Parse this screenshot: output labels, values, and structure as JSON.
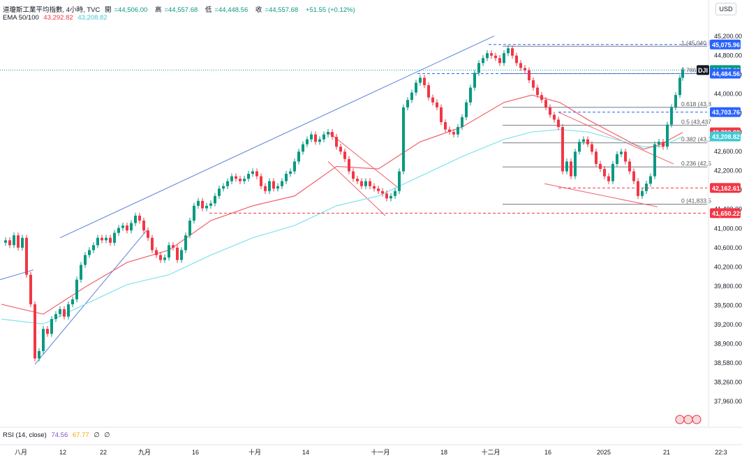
{
  "header": {
    "title": "道瓊斯工業平均指數, 4小時, TVC",
    "open_label": "開",
    "open": "=44,506.00",
    "high_label": "高",
    "high": "=44,557.68",
    "low_label": "低",
    "low": "=44,448.56",
    "close_label": "收",
    "close": "=44,557.68",
    "change": "+51.55 (+0.12%)",
    "ema_label": "EMA 50/100",
    "ema50": "43,292.82",
    "ema100": "43,208.82",
    "currency": "USD"
  },
  "rsi": {
    "label": "RSI (14, close)",
    "v1": "74.56",
    "v2": "67.77",
    "v3": "∅",
    "v4": "∅"
  },
  "colors": {
    "up": "#089981",
    "down": "#f23645",
    "ema50": "#f0606a",
    "ema100": "#7fe3ec",
    "trend": "#5b7fdc",
    "fib": "#787b86",
    "accent": "#2962ff"
  },
  "chart_data": {
    "type": "candlestick",
    "title": "",
    "ylim": [
      37800,
      45300
    ],
    "y_ticks": [
      "45,200.00",
      "44,800.00",
      "44,400.00",
      "44,000.00",
      "43,500.00",
      "43,000.00",
      "42,600.00",
      "42,200.00",
      "41,800.00",
      "41,400.00",
      "41,000.00",
      "40,600.00",
      "40,200.00",
      "39,800.00",
      "39,500.00",
      "39,200.00",
      "38,900.00",
      "38,580.00",
      "38,260.00",
      "37,960.00"
    ],
    "x_ticks": [
      "八月",
      "12",
      "22",
      "九月",
      "16",
      "十月",
      "14",
      "十一月",
      "18",
      "十二月",
      "16",
      "2025",
      "21",
      "22:3"
    ],
    "price_tags": [
      {
        "label": "45,075.96",
        "value": 45075.96,
        "kind": "level"
      },
      {
        "label": "44,557.68",
        "value": 44557.68,
        "kind": "last",
        "symbol": "DJI"
      },
      {
        "label": "44,484.56",
        "value": 44484.56,
        "kind": "level"
      },
      {
        "label": "43,703.76",
        "value": 43703.76,
        "kind": "level"
      },
      {
        "label": "43,292.82",
        "value": 43292.82,
        "kind": "ema50"
      },
      {
        "label": "43,208.82",
        "value": 43208.82,
        "kind": "ema100"
      },
      {
        "label": "42,162.61",
        "value": 42162.61,
        "kind": "alert"
      },
      {
        "label": "41,650.22",
        "value": 41650.22,
        "kind": "alert"
      }
    ],
    "fib_levels": [
      {
        "label": "1 (45,040.8",
        "value": 45040.8
      },
      {
        "label": "0.786",
        "value": 44484.56
      },
      {
        "label": "0.618 (43,8",
        "value": 43800
      },
      {
        "label": "0.5 (43,437",
        "value": 43437
      },
      {
        "label": "0.382 (43,0",
        "value": 43080
      },
      {
        "label": "0.236 (42,5",
        "value": 42590
      },
      {
        "label": "0 (41,833.5",
        "value": 41833.5
      }
    ],
    "candle_close_path": [
      [
        0,
        41050
      ],
      [
        6,
        41100
      ],
      [
        12,
        41000
      ],
      [
        18,
        41200
      ],
      [
        24,
        40950
      ],
      [
        30,
        41150
      ],
      [
        36,
        40400
      ],
      [
        42,
        39800
      ],
      [
        48,
        38700
      ],
      [
        54,
        38850
      ],
      [
        60,
        39300
      ],
      [
        66,
        39200
      ],
      [
        72,
        39500
      ],
      [
        78,
        39600
      ],
      [
        84,
        39700
      ],
      [
        90,
        39550
      ],
      [
        96,
        39800
      ],
      [
        102,
        39900
      ],
      [
        108,
        40300
      ],
      [
        114,
        40600
      ],
      [
        120,
        40800
      ],
      [
        126,
        40900
      ],
      [
        132,
        41000
      ],
      [
        138,
        41150
      ],
      [
        144,
        41100
      ],
      [
        150,
        41150
      ],
      [
        156,
        41050
      ],
      [
        162,
        41250
      ],
      [
        168,
        41350
      ],
      [
        174,
        41400
      ],
      [
        180,
        41300
      ],
      [
        186,
        41450
      ],
      [
        192,
        41600
      ],
      [
        198,
        41500
      ],
      [
        204,
        41300
      ],
      [
        210,
        41150
      ],
      [
        216,
        40900
      ],
      [
        222,
        40800
      ],
      [
        228,
        40700
      ],
      [
        234,
        40750
      ],
      [
        240,
        41000
      ],
      [
        246,
        40950
      ],
      [
        252,
        40700
      ],
      [
        258,
        40900
      ],
      [
        264,
        41200
      ],
      [
        270,
        41500
      ],
      [
        276,
        41800
      ],
      [
        282,
        41900
      ],
      [
        288,
        41750
      ],
      [
        294,
        41800
      ],
      [
        300,
        41850
      ],
      [
        306,
        42000
      ],
      [
        312,
        42150
      ],
      [
        318,
        42200
      ],
      [
        324,
        42300
      ],
      [
        330,
        42400
      ],
      [
        336,
        42350
      ],
      [
        342,
        42300
      ],
      [
        348,
        42350
      ],
      [
        354,
        42450
      ],
      [
        360,
        42500
      ],
      [
        366,
        42400
      ],
      [
        372,
        42200
      ],
      [
        378,
        42100
      ],
      [
        384,
        42300
      ],
      [
        390,
        42150
      ],
      [
        396,
        42200
      ],
      [
        402,
        42300
      ],
      [
        408,
        42450
      ],
      [
        414,
        42500
      ],
      [
        420,
        42700
      ],
      [
        426,
        42900
      ],
      [
        432,
        43050
      ],
      [
        438,
        43150
      ],
      [
        444,
        43250
      ],
      [
        450,
        43100
      ],
      [
        456,
        43150
      ],
      [
        462,
        43250
      ],
      [
        468,
        43300
      ],
      [
        474,
        43200
      ],
      [
        480,
        43000
      ],
      [
        486,
        42900
      ],
      [
        492,
        42750
      ],
      [
        498,
        42500
      ],
      [
        504,
        42350
      ],
      [
        510,
        42300
      ],
      [
        516,
        42200
      ],
      [
        522,
        42300
      ],
      [
        528,
        42200
      ],
      [
        534,
        42150
      ],
      [
        540,
        42100
      ],
      [
        546,
        42050
      ],
      [
        552,
        41950
      ],
      [
        558,
        42000
      ],
      [
        564,
        42100
      ],
      [
        570,
        42500
      ],
      [
        576,
        43800
      ],
      [
        582,
        43950
      ],
      [
        588,
        44100
      ],
      [
        594,
        44300
      ],
      [
        600,
        44400
      ],
      [
        606,
        44250
      ],
      [
        612,
        44000
      ],
      [
        618,
        43900
      ],
      [
        624,
        43800
      ],
      [
        630,
        43500
      ],
      [
        636,
        43350
      ],
      [
        642,
        43300
      ],
      [
        648,
        43250
      ],
      [
        654,
        43400
      ],
      [
        660,
        43600
      ],
      [
        666,
        43900
      ],
      [
        672,
        44200
      ],
      [
        678,
        44500
      ],
      [
        684,
        44700
      ],
      [
        690,
        44800
      ],
      [
        696,
        44900
      ],
      [
        702,
        44850
      ],
      [
        708,
        44800
      ],
      [
        714,
        44700
      ],
      [
        720,
        44900
      ],
      [
        726,
        45000
      ],
      [
        732,
        44850
      ],
      [
        738,
        44700
      ],
      [
        744,
        44600
      ],
      [
        750,
        44550
      ],
      [
        756,
        44350
      ],
      [
        762,
        44200
      ],
      [
        768,
        44050
      ],
      [
        774,
        43950
      ],
      [
        780,
        43800
      ],
      [
        786,
        43650
      ],
      [
        792,
        43550
      ],
      [
        798,
        43400
      ],
      [
        804,
        42500
      ],
      [
        810,
        42700
      ],
      [
        816,
        42400
      ],
      [
        822,
        42900
      ],
      [
        828,
        43100
      ],
      [
        834,
        43150
      ],
      [
        840,
        43050
      ],
      [
        846,
        42900
      ],
      [
        852,
        42650
      ],
      [
        858,
        42550
      ],
      [
        864,
        42400
      ],
      [
        870,
        42300
      ],
      [
        876,
        42650
      ],
      [
        882,
        42850
      ],
      [
        888,
        42900
      ],
      [
        894,
        42700
      ],
      [
        900,
        42500
      ],
      [
        906,
        42300
      ],
      [
        912,
        42000
      ],
      [
        918,
        42100
      ],
      [
        924,
        42250
      ],
      [
        930,
        42400
      ],
      [
        936,
        43050
      ],
      [
        942,
        43100
      ],
      [
        948,
        43000
      ],
      [
        954,
        43450
      ],
      [
        960,
        43800
      ],
      [
        966,
        44050
      ],
      [
        972,
        44400
      ],
      [
        976,
        44557
      ]
    ],
    "ema50_path": [
      [
        0,
        39800
      ],
      [
        60,
        39600
      ],
      [
        120,
        40150
      ],
      [
        180,
        40650
      ],
      [
        240,
        40900
      ],
      [
        300,
        41500
      ],
      [
        360,
        41800
      ],
      [
        420,
        42000
      ],
      [
        480,
        42600
      ],
      [
        540,
        42550
      ],
      [
        600,
        43100
      ],
      [
        660,
        43400
      ],
      [
        720,
        43900
      ],
      [
        760,
        44050
      ],
      [
        800,
        43900
      ],
      [
        840,
        43550
      ],
      [
        880,
        43250
      ],
      [
        920,
        42950
      ],
      [
        945,
        43050
      ],
      [
        976,
        43292
      ]
    ],
    "ema100_path": [
      [
        0,
        39500
      ],
      [
        60,
        39400
      ],
      [
        120,
        39800
      ],
      [
        180,
        40200
      ],
      [
        240,
        40400
      ],
      [
        300,
        40800
      ],
      [
        360,
        41150
      ],
      [
        420,
        41400
      ],
      [
        480,
        41800
      ],
      [
        540,
        42000
      ],
      [
        600,
        42400
      ],
      [
        660,
        42800
      ],
      [
        720,
        43150
      ],
      [
        760,
        43300
      ],
      [
        800,
        43350
      ],
      [
        840,
        43300
      ],
      [
        880,
        43150
      ],
      [
        920,
        43000
      ],
      [
        945,
        43000
      ],
      [
        976,
        43208
      ]
    ]
  }
}
